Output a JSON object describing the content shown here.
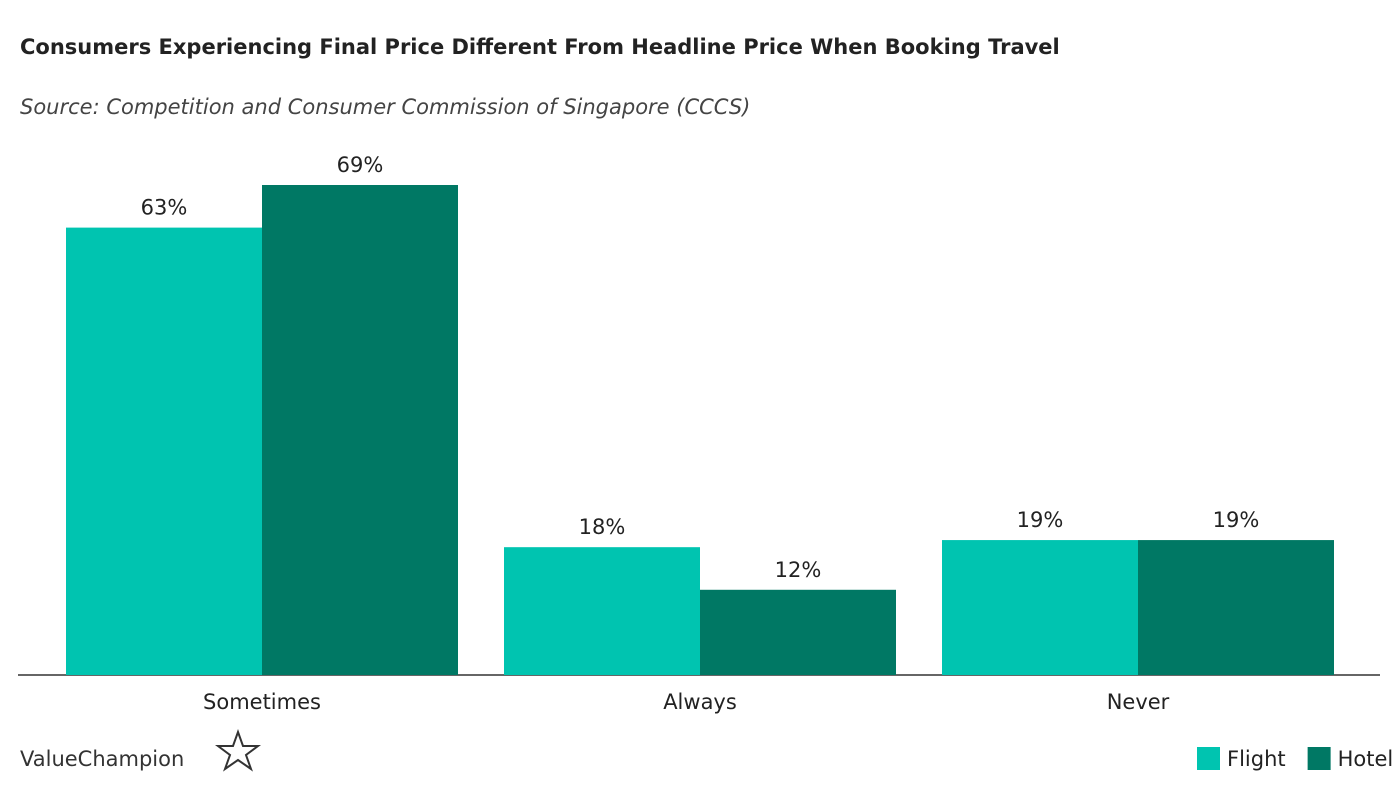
{
  "chart_data": {
    "type": "bar",
    "title": "Consumers Experiencing Final Price Different From Headline Price When Booking Travel",
    "subtitle": "Source: Competition and Consumer Commission of Singapore (CCCS)",
    "categories": [
      "Sometimes",
      "Always",
      "Never"
    ],
    "series": [
      {
        "name": "Flight",
        "color": "#00c4b0",
        "values": [
          63,
          18,
          19
        ],
        "value_labels": [
          "63%",
          "18%",
          "19%"
        ]
      },
      {
        "name": "Hotel",
        "color": "#007864",
        "values": [
          69,
          12,
          19
        ],
        "value_labels": [
          "69%",
          "12%",
          "19%"
        ]
      }
    ],
    "legend": "bottom-right",
    "brand": "ValueChampion"
  }
}
